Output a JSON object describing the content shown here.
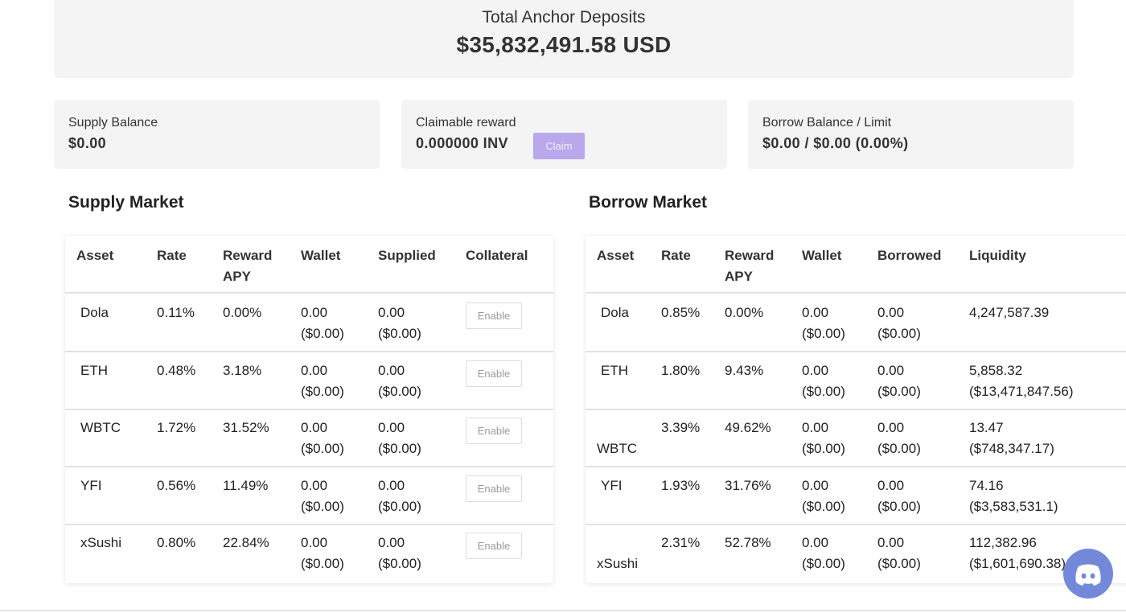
{
  "hero": {
    "label": "Total Anchor Deposits",
    "value": "$35,832,491.58 USD"
  },
  "stats": {
    "supply_label": "Supply Balance",
    "supply_value": "$0.00",
    "reward_label": "Claimable reward",
    "reward_value": "0.000000 INV",
    "claim_label": "Claim",
    "borrow_label": "Borrow Balance / Limit",
    "borrow_value": "$0.00 / $0.00 (0.00%)"
  },
  "supply": {
    "title": "Supply Market",
    "headers": [
      "Asset",
      "Rate",
      "Reward\nAPY",
      "Wallet",
      "Supplied",
      "Collateral"
    ],
    "button_label": "Enable",
    "rows": [
      {
        "asset": "Dola",
        "rate": "0.11%",
        "apy": "0.00%",
        "wallet": "0.00",
        "wallet_usd": "($0.00)",
        "supplied": "0.00",
        "supplied_usd": "($0.00)"
      },
      {
        "asset": "ETH",
        "rate": "0.48%",
        "apy": "3.18%",
        "wallet": "0.00",
        "wallet_usd": "($0.00)",
        "supplied": "0.00",
        "supplied_usd": "($0.00)"
      },
      {
        "asset": "WBTC",
        "rate": "1.72%",
        "apy": "31.52%",
        "wallet": "0.00",
        "wallet_usd": "($0.00)",
        "supplied": "0.00",
        "supplied_usd": "($0.00)"
      },
      {
        "asset": "YFI",
        "rate": "0.56%",
        "apy": "11.49%",
        "wallet": "0.00",
        "wallet_usd": "($0.00)",
        "supplied": "0.00",
        "supplied_usd": "($0.00)"
      },
      {
        "asset": "xSushi",
        "rate": "0.80%",
        "apy": "22.84%",
        "wallet": "0.00",
        "wallet_usd": "($0.00)",
        "supplied": "0.00",
        "supplied_usd": "($0.00)"
      }
    ]
  },
  "borrow": {
    "title": "Borrow Market",
    "headers": [
      "Asset",
      "Rate",
      "Reward\nAPY",
      "Wallet",
      "Borrowed",
      "Liquidity"
    ],
    "rows": [
      {
        "asset": "Dola",
        "rate": "0.85%",
        "apy": "0.00%",
        "wallet": "0.00",
        "wallet_usd": "($0.00)",
        "borrowed": "0.00",
        "borrowed_usd": "($0.00)",
        "liquidity": "4,247,587.39",
        "liquidity_usd": ""
      },
      {
        "asset": "ETH",
        "rate": "1.80%",
        "apy": "9.43%",
        "wallet": "0.00",
        "wallet_usd": "($0.00)",
        "borrowed": "0.00",
        "borrowed_usd": "($0.00)",
        "liquidity": "5,858.32",
        "liquidity_usd": "($13,471,847.56)"
      },
      {
        "asset": "WBTC",
        "rate": "3.39%",
        "apy": "49.62%",
        "wallet": "0.00",
        "wallet_usd": "($0.00)",
        "borrowed": "0.00",
        "borrowed_usd": "($0.00)",
        "liquidity": "13.47",
        "liquidity_usd": "($748,347.17)"
      },
      {
        "asset": "YFI",
        "rate": "1.93%",
        "apy": "31.76%",
        "wallet": "0.00",
        "wallet_usd": "($0.00)",
        "borrowed": "0.00",
        "borrowed_usd": "($0.00)",
        "liquidity": "74.16",
        "liquidity_usd": "($3,583,531.1)"
      },
      {
        "asset": "xSushi",
        "rate": "2.31%",
        "apy": "52.78%",
        "wallet": "0.00",
        "wallet_usd": "($0.00)",
        "borrowed": "0.00",
        "borrowed_usd": "($0.00)",
        "liquidity": "112,382.96",
        "liquidity_usd": "($1,601,690.38)"
      }
    ]
  },
  "colors": {
    "accent": "#b9a8ec",
    "discord": "#7289da",
    "panel": "#f4f4f4"
  },
  "icons": {
    "chat": "discord-icon"
  }
}
